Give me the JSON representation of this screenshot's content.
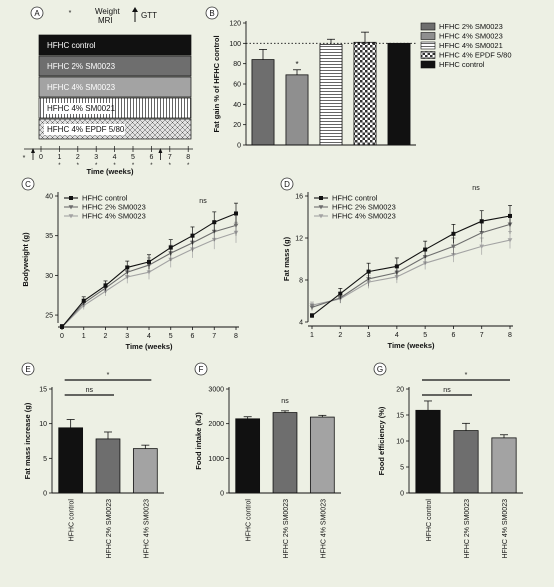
{
  "panels": {
    "A": "A",
    "B": "B",
    "C": "C",
    "D": "D",
    "E": "E",
    "F": "F",
    "G": "G"
  },
  "panel_a": {
    "legend_weight": "Weight",
    "legend_mri": "MRI",
    "legend_gtt": "GTT",
    "groups": [
      "HFHC control",
      "HFHC 2% SM0023",
      "HFHC 4% SM0023",
      "HFHC 4% SM0021",
      "HFHC 4% EPDF 5/80"
    ],
    "group_colors": [
      "#111111",
      "#6e6e6e",
      "#a3a3a3",
      "#ffffff",
      "#d8d8d8"
    ],
    "ticks": [
      "0",
      "1",
      "2",
      "3",
      "4",
      "5",
      "6",
      "7",
      "8"
    ],
    "star": "*",
    "xlabel": "Time (weeks)"
  },
  "chart_data": [
    {
      "id": "B",
      "type": "bar",
      "ylabel": "Fat gain % of HFHC control",
      "yticks": [
        "0",
        "20",
        "40",
        "60",
        "80",
        "100",
        "120"
      ],
      "ylim": [
        0,
        120
      ],
      "reference_line": 100,
      "categories": [
        "HFHC 2% SM0023",
        "HFHC 4% SM0023",
        "HFHC 4% SM0021",
        "HFHC 4% EPDF 5/80",
        "HFHC control"
      ],
      "values": [
        84,
        69,
        99,
        101,
        100
      ],
      "errors": [
        10,
        5,
        5,
        10,
        0
      ],
      "annotations": [
        "",
        "*",
        "",
        "",
        ""
      ],
      "colors": [
        "#6e6e6e",
        "#8f8f8f",
        "#ffffff",
        "#d8d8d8",
        "#111111"
      ],
      "patterns": [
        "solid",
        "solid",
        "hlines",
        "checks",
        "solid"
      ],
      "legend": [
        "HFHC 2% SM0023",
        "HFHC 4% SM0023",
        "HFHC 4% SM0021",
        "HFHC 4% EPDF 5/80",
        "HFHC control"
      ],
      "legend_position": "right"
    },
    {
      "id": "C",
      "type": "line",
      "xlabel": "Time (weeks)",
      "ylabel": "Bodyweight (g)",
      "x": [
        0,
        1,
        2,
        3,
        4,
        5,
        6,
        7,
        8
      ],
      "xticks": [
        "0",
        "1",
        "2",
        "3",
        "4",
        "5",
        "6",
        "7",
        "8"
      ],
      "yticks": [
        "25",
        "30",
        "35",
        "40"
      ],
      "ylim": [
        24,
        40
      ],
      "annotation": "ns",
      "legend_position": "top-left",
      "series": [
        {
          "name": "HFHC control",
          "values": [
            23.5,
            26.8,
            28.7,
            31.0,
            31.7,
            33.5,
            35.0,
            36.7,
            37.8
          ],
          "errors": [
            0.3,
            0.5,
            0.6,
            0.8,
            0.9,
            1.0,
            1.1,
            1.3,
            1.3
          ],
          "color": "#111111",
          "marker": "square"
        },
        {
          "name": "HFHC 2% SM0023",
          "values": [
            23.5,
            26.5,
            28.4,
            30.4,
            31.3,
            32.8,
            34.1,
            35.5,
            36.3
          ],
          "errors": [
            0.3,
            0.5,
            0.6,
            0.8,
            0.9,
            1.0,
            1.1,
            1.2,
            1.3
          ],
          "color": "#6e6e6e",
          "marker": "triangle-down"
        },
        {
          "name": "HFHC 4% SM0023",
          "values": [
            23.5,
            26.2,
            28.0,
            29.8,
            30.4,
            32.0,
            33.3,
            34.5,
            35.4
          ],
          "errors": [
            0.3,
            0.5,
            0.6,
            0.8,
            0.9,
            1.0,
            1.1,
            1.2,
            1.3
          ],
          "color": "#a3a3a3",
          "marker": "triangle-down"
        }
      ]
    },
    {
      "id": "D",
      "type": "line",
      "xlabel": "Time (weeks)",
      "ylabel": "Fat mass (g)",
      "x": [
        1,
        2,
        3,
        4,
        5,
        6,
        7,
        8
      ],
      "xticks": [
        "1",
        "2",
        "3",
        "4",
        "5",
        "6",
        "7",
        "8"
      ],
      "yticks": [
        "4",
        "8",
        "12",
        "16"
      ],
      "ylim": [
        4,
        16
      ],
      "annotation": "ns",
      "legend_position": "top-left",
      "series": [
        {
          "name": "HFHC control",
          "values": [
            4.6,
            6.7,
            8.8,
            9.3,
            10.9,
            12.4,
            13.6,
            14.1
          ],
          "errors": [
            0.2,
            0.5,
            0.8,
            0.8,
            0.8,
            0.9,
            1.0,
            1.0
          ],
          "color": "#111111",
          "marker": "square"
        },
        {
          "name": "HFHC 2% SM0023",
          "values": [
            5.4,
            6.3,
            8.1,
            8.7,
            10.2,
            11.2,
            12.5,
            13.3
          ],
          "errors": [
            0.3,
            0.5,
            0.7,
            0.7,
            0.7,
            0.8,
            0.9,
            0.9
          ],
          "color": "#6e6e6e",
          "marker": "triangle-down"
        },
        {
          "name": "HFHC 4% SM0023",
          "values": [
            5.6,
            6.2,
            7.8,
            8.3,
            9.6,
            10.4,
            11.2,
            11.8
          ],
          "errors": [
            0.3,
            0.4,
            0.6,
            0.6,
            0.6,
            0.7,
            0.8,
            0.8
          ],
          "color": "#a3a3a3",
          "marker": "triangle-down"
        }
      ]
    },
    {
      "id": "E",
      "type": "bar",
      "ylabel": "Fat mass increase (g)",
      "yticks": [
        "0",
        "5",
        "10",
        "15"
      ],
      "ylim": [
        0,
        15
      ],
      "categories": [
        "HFHC control",
        "HFHC 2% SM0023",
        "HFHC 4% SM0023"
      ],
      "values": [
        9.4,
        7.8,
        6.4
      ],
      "errors": [
        1.2,
        1.0,
        0.5
      ],
      "colors": [
        "#111111",
        "#6e6e6e",
        "#a3a3a3"
      ],
      "sig_brackets": [
        {
          "from": 0,
          "to": 2,
          "label": "*"
        },
        {
          "from": 0,
          "to": 1,
          "label": "ns"
        }
      ]
    },
    {
      "id": "F",
      "type": "bar",
      "ylabel": "Food intake (kJ)",
      "yticks": [
        "0",
        "1000",
        "2000",
        "3000"
      ],
      "ylim": [
        0,
        3000
      ],
      "categories": [
        "HFHC control",
        "HFHC 2% SM0023",
        "HFHC 4% SM0023"
      ],
      "values": [
        2140,
        2320,
        2190
      ],
      "errors": [
        60,
        50,
        50
      ],
      "colors": [
        "#111111",
        "#6e6e6e",
        "#a3a3a3"
      ],
      "annotation": "ns"
    },
    {
      "id": "G",
      "type": "bar",
      "ylabel": "Food efficiency (%)",
      "yticks": [
        "0",
        "5",
        "10",
        "15",
        "20"
      ],
      "ylim": [
        0,
        20
      ],
      "categories": [
        "HFHC control",
        "HFHC 2% SM0023",
        "HFHC 4% SM0023"
      ],
      "values": [
        15.9,
        12.0,
        10.6
      ],
      "errors": [
        1.8,
        1.4,
        0.6
      ],
      "colors": [
        "#111111",
        "#6e6e6e",
        "#a3a3a3"
      ],
      "sig_brackets": [
        {
          "from": 0,
          "to": 2,
          "label": "*"
        },
        {
          "from": 0,
          "to": 1,
          "label": "ns"
        }
      ]
    }
  ]
}
